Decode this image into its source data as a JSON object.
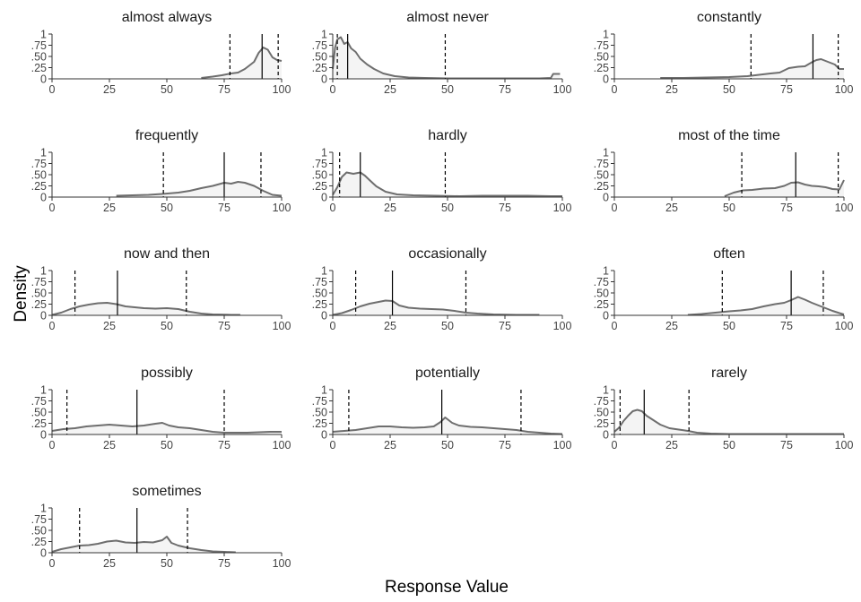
{
  "figure": {
    "xlabel": "Response Value",
    "ylabel": "Density"
  },
  "style": {
    "line_color": "#6e6e6e",
    "fill_color": "#f4f4f4",
    "axis_color": "#333333",
    "marker_color": "#000000"
  },
  "chart_data": {
    "type": "area",
    "facet": "density ridge panels with median (solid) and 90% interval (dashed) markers",
    "xlim": [
      0,
      100
    ],
    "ylim": [
      0,
      1
    ],
    "x_ticks": [
      0,
      25,
      50,
      75,
      100
    ],
    "x_tick_labels": [
      "0",
      "25",
      "50",
      "75",
      "100"
    ],
    "y_ticks": [
      0,
      0.25,
      0.5,
      0.75,
      1
    ],
    "y_tick_labels": [
      "0",
      ".25",
      ".50",
      ".75",
      "1"
    ],
    "panels": [
      {
        "title": "almost always",
        "median": 91.5,
        "lower": 77.5,
        "upper": 98.5,
        "points": [
          [
            65,
            0.02
          ],
          [
            70,
            0.05
          ],
          [
            74,
            0.08
          ],
          [
            78,
            0.12
          ],
          [
            81,
            0.14
          ],
          [
            84,
            0.22
          ],
          [
            86,
            0.3
          ],
          [
            88,
            0.38
          ],
          [
            90,
            0.58
          ],
          [
            92,
            0.7
          ],
          [
            94,
            0.65
          ],
          [
            96,
            0.48
          ],
          [
            98,
            0.42
          ],
          [
            100,
            0.4
          ]
        ]
      },
      {
        "title": "almost never",
        "median": 6.5,
        "lower": 2,
        "upper": 49,
        "points": [
          [
            0,
            0.22
          ],
          [
            1,
            0.7
          ],
          [
            2,
            0.88
          ],
          [
            3.5,
            0.93
          ],
          [
            5,
            0.78
          ],
          [
            6.5,
            0.82
          ],
          [
            8,
            0.68
          ],
          [
            10,
            0.6
          ],
          [
            12,
            0.45
          ],
          [
            15,
            0.32
          ],
          [
            18,
            0.22
          ],
          [
            22,
            0.12
          ],
          [
            27,
            0.06
          ],
          [
            33,
            0.03
          ],
          [
            40,
            0.02
          ],
          [
            50,
            0.01
          ],
          [
            60,
            0.01
          ],
          [
            70,
            0.01
          ],
          [
            80,
            0.01
          ],
          [
            90,
            0.01
          ],
          [
            95,
            0.02
          ],
          [
            96,
            0.11
          ],
          [
            99,
            0.11
          ]
        ]
      },
      {
        "title": "constantly",
        "median": 86.5,
        "lower": 59.5,
        "upper": 97.5,
        "points": [
          [
            20,
            0.02
          ],
          [
            30,
            0.02
          ],
          [
            40,
            0.03
          ],
          [
            50,
            0.04
          ],
          [
            58,
            0.06
          ],
          [
            63,
            0.09
          ],
          [
            68,
            0.12
          ],
          [
            72,
            0.14
          ],
          [
            76,
            0.24
          ],
          [
            80,
            0.27
          ],
          [
            83,
            0.28
          ],
          [
            86,
            0.37
          ],
          [
            88,
            0.42
          ],
          [
            90,
            0.44
          ],
          [
            93,
            0.38
          ],
          [
            96,
            0.32
          ],
          [
            98,
            0.22
          ],
          [
            100,
            0.22
          ]
        ]
      },
      {
        "title": "frequently",
        "median": 75,
        "lower": 48.5,
        "upper": 91,
        "points": [
          [
            28,
            0.03
          ],
          [
            35,
            0.04
          ],
          [
            42,
            0.05
          ],
          [
            48,
            0.07
          ],
          [
            55,
            0.1
          ],
          [
            60,
            0.14
          ],
          [
            65,
            0.2
          ],
          [
            70,
            0.25
          ],
          [
            75,
            0.32
          ],
          [
            78,
            0.3
          ],
          [
            81,
            0.34
          ],
          [
            84,
            0.32
          ],
          [
            88,
            0.25
          ],
          [
            92,
            0.14
          ],
          [
            96,
            0.05
          ],
          [
            100,
            0.03
          ]
        ]
      },
      {
        "title": "hardly",
        "median": 12,
        "lower": 3,
        "upper": 49,
        "points": [
          [
            0,
            0.05
          ],
          [
            2,
            0.22
          ],
          [
            4,
            0.45
          ],
          [
            6,
            0.55
          ],
          [
            9,
            0.52
          ],
          [
            12,
            0.55
          ],
          [
            14,
            0.48
          ],
          [
            16,
            0.38
          ],
          [
            19,
            0.24
          ],
          [
            23,
            0.12
          ],
          [
            28,
            0.06
          ],
          [
            35,
            0.04
          ],
          [
            45,
            0.03
          ],
          [
            55,
            0.02
          ],
          [
            65,
            0.03
          ],
          [
            75,
            0.03
          ],
          [
            85,
            0.03
          ],
          [
            95,
            0.02
          ],
          [
            100,
            0.02
          ]
        ]
      },
      {
        "title": "most of the time",
        "median": 79,
        "lower": 55.5,
        "upper": 97.5,
        "points": [
          [
            48,
            0.02
          ],
          [
            52,
            0.1
          ],
          [
            56,
            0.15
          ],
          [
            60,
            0.16
          ],
          [
            65,
            0.19
          ],
          [
            70,
            0.2
          ],
          [
            74,
            0.25
          ],
          [
            77,
            0.32
          ],
          [
            80,
            0.33
          ],
          [
            83,
            0.28
          ],
          [
            86,
            0.25
          ],
          [
            89,
            0.24
          ],
          [
            92,
            0.22
          ],
          [
            95,
            0.18
          ],
          [
            98,
            0.17
          ],
          [
            100,
            0.38
          ]
        ]
      },
      {
        "title": "now and then",
        "median": 28.5,
        "lower": 10,
        "upper": 58.5,
        "points": [
          [
            0,
            0.01
          ],
          [
            4,
            0.06
          ],
          [
            8,
            0.14
          ],
          [
            12,
            0.2
          ],
          [
            16,
            0.24
          ],
          [
            20,
            0.27
          ],
          [
            24,
            0.28
          ],
          [
            28,
            0.25
          ],
          [
            32,
            0.2
          ],
          [
            36,
            0.18
          ],
          [
            40,
            0.16
          ],
          [
            45,
            0.15
          ],
          [
            50,
            0.16
          ],
          [
            55,
            0.14
          ],
          [
            60,
            0.08
          ],
          [
            65,
            0.04
          ],
          [
            70,
            0.02
          ],
          [
            78,
            0.01
          ],
          [
            82,
            0.01
          ]
        ]
      },
      {
        "title": "occasionally",
        "median": 26,
        "lower": 10,
        "upper": 58,
        "points": [
          [
            0,
            0.01
          ],
          [
            4,
            0.05
          ],
          [
            8,
            0.12
          ],
          [
            12,
            0.2
          ],
          [
            16,
            0.26
          ],
          [
            20,
            0.3
          ],
          [
            23,
            0.33
          ],
          [
            26,
            0.32
          ],
          [
            29,
            0.22
          ],
          [
            33,
            0.17
          ],
          [
            38,
            0.15
          ],
          [
            43,
            0.14
          ],
          [
            48,
            0.13
          ],
          [
            53,
            0.1
          ],
          [
            58,
            0.06
          ],
          [
            63,
            0.04
          ],
          [
            70,
            0.02
          ],
          [
            80,
            0.01
          ],
          [
            90,
            0.01
          ]
        ]
      },
      {
        "title": "often",
        "median": 77,
        "lower": 47,
        "upper": 91,
        "points": [
          [
            32,
            0.01
          ],
          [
            38,
            0.03
          ],
          [
            44,
            0.06
          ],
          [
            50,
            0.09
          ],
          [
            55,
            0.11
          ],
          [
            60,
            0.14
          ],
          [
            65,
            0.2
          ],
          [
            70,
            0.25
          ],
          [
            74,
            0.28
          ],
          [
            77,
            0.34
          ],
          [
            80,
            0.41
          ],
          [
            83,
            0.35
          ],
          [
            86,
            0.28
          ],
          [
            89,
            0.22
          ],
          [
            92,
            0.16
          ],
          [
            95,
            0.1
          ],
          [
            98,
            0.05
          ],
          [
            100,
            0.02
          ]
        ]
      },
      {
        "title": "possibly",
        "median": 37,
        "lower": 6.5,
        "upper": 75,
        "points": [
          [
            0,
            0.08
          ],
          [
            5,
            0.12
          ],
          [
            10,
            0.14
          ],
          [
            15,
            0.18
          ],
          [
            20,
            0.2
          ],
          [
            25,
            0.22
          ],
          [
            30,
            0.2
          ],
          [
            35,
            0.18
          ],
          [
            40,
            0.2
          ],
          [
            45,
            0.24
          ],
          [
            48,
            0.26
          ],
          [
            51,
            0.2
          ],
          [
            55,
            0.16
          ],
          [
            60,
            0.14
          ],
          [
            65,
            0.1
          ],
          [
            70,
            0.06
          ],
          [
            75,
            0.04
          ],
          [
            80,
            0.04
          ],
          [
            85,
            0.04
          ],
          [
            90,
            0.05
          ],
          [
            95,
            0.06
          ],
          [
            100,
            0.06
          ]
        ]
      },
      {
        "title": "potentially",
        "median": 47.5,
        "lower": 7,
        "upper": 82,
        "points": [
          [
            0,
            0.06
          ],
          [
            5,
            0.08
          ],
          [
            10,
            0.1
          ],
          [
            15,
            0.14
          ],
          [
            20,
            0.18
          ],
          [
            25,
            0.18
          ],
          [
            30,
            0.16
          ],
          [
            35,
            0.15
          ],
          [
            40,
            0.16
          ],
          [
            44,
            0.18
          ],
          [
            47,
            0.28
          ],
          [
            49,
            0.38
          ],
          [
            52,
            0.26
          ],
          [
            55,
            0.2
          ],
          [
            60,
            0.17
          ],
          [
            65,
            0.16
          ],
          [
            70,
            0.14
          ],
          [
            75,
            0.12
          ],
          [
            80,
            0.1
          ],
          [
            85,
            0.06
          ],
          [
            90,
            0.04
          ],
          [
            95,
            0.02
          ],
          [
            100,
            0.01
          ]
        ]
      },
      {
        "title": "rarely",
        "median": 13,
        "lower": 2.5,
        "upper": 32.5,
        "points": [
          [
            0,
            0.06
          ],
          [
            2,
            0.15
          ],
          [
            4,
            0.3
          ],
          [
            6,
            0.42
          ],
          [
            8,
            0.52
          ],
          [
            10,
            0.55
          ],
          [
            12,
            0.52
          ],
          [
            14,
            0.42
          ],
          [
            17,
            0.32
          ],
          [
            20,
            0.22
          ],
          [
            24,
            0.14
          ],
          [
            28,
            0.11
          ],
          [
            32,
            0.08
          ],
          [
            36,
            0.04
          ],
          [
            42,
            0.02
          ],
          [
            50,
            0.01
          ],
          [
            60,
            0.01
          ],
          [
            70,
            0.01
          ],
          [
            80,
            0.01
          ],
          [
            90,
            0.01
          ],
          [
            100,
            0.01
          ]
        ]
      },
      {
        "title": "sometimes",
        "median": 37,
        "lower": 12,
        "upper": 59,
        "points": [
          [
            0,
            0.02
          ],
          [
            4,
            0.08
          ],
          [
            8,
            0.12
          ],
          [
            12,
            0.16
          ],
          [
            16,
            0.17
          ],
          [
            20,
            0.2
          ],
          [
            24,
            0.25
          ],
          [
            28,
            0.27
          ],
          [
            32,
            0.23
          ],
          [
            36,
            0.22
          ],
          [
            40,
            0.24
          ],
          [
            44,
            0.23
          ],
          [
            48,
            0.28
          ],
          [
            50,
            0.36
          ],
          [
            52,
            0.22
          ],
          [
            55,
            0.16
          ],
          [
            60,
            0.1
          ],
          [
            65,
            0.06
          ],
          [
            70,
            0.03
          ],
          [
            75,
            0.02
          ],
          [
            80,
            0.01
          ]
        ]
      }
    ]
  }
}
